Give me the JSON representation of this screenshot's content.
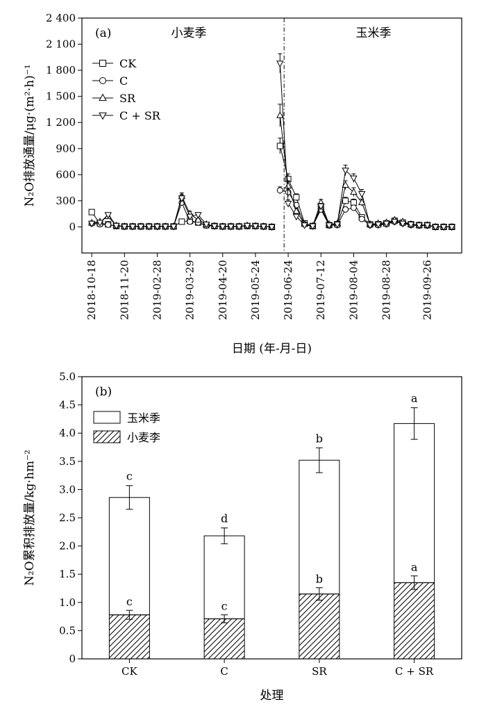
{
  "chart_data": [
    {
      "panel": "(a)",
      "type": "line",
      "ylabel": "N₂O排放通量/μg·(m²·h)⁻¹",
      "xlabel": "日期 (年-月-日)",
      "ylim": [
        -300,
        2400
      ],
      "yticks": [
        0,
        300,
        600,
        900,
        1200,
        1500,
        1800,
        2100,
        2400
      ],
      "ytick_labels": [
        "0",
        "300",
        "600",
        "900",
        "1 200",
        "1 500",
        "1 800",
        "2 100",
        "2 400"
      ],
      "xtick_labels": [
        "2018-10-18",
        "2018-11-20",
        "2019-02-28",
        "2019-03-29",
        "2019-04-20",
        "2019-05-24",
        "2019-06-24",
        "2019-07-12",
        "2019-08-04",
        "2019-08-28",
        "2019-09-26"
      ],
      "season_labels": [
        "小麦季",
        "玉米季"
      ],
      "legend_position": "top-left",
      "x": [
        0,
        0.5,
        1,
        1.5,
        2,
        2.5,
        3,
        3.5,
        4,
        4.5,
        5,
        5.5,
        6,
        6.5,
        7,
        7.5,
        8,
        8.5,
        9,
        9.5,
        10,
        10.5,
        11,
        11.5,
        12,
        12.5,
        13,
        13.5,
        14,
        14.5,
        15,
        15.5,
        16,
        16.5,
        17,
        17.5,
        18,
        18.5,
        19,
        19.5,
        20,
        20.5,
        21,
        21.5,
        22
      ],
      "series": [
        {
          "name": "CK",
          "marker": "square",
          "y": [
            170,
            40,
            30,
            10,
            5,
            5,
            5,
            5,
            5,
            5,
            5,
            60,
            70,
            50,
            20,
            10,
            5,
            5,
            5,
            10,
            10,
            5,
            0,
            930,
            550,
            340,
            40,
            10,
            210,
            20,
            30,
            300,
            280,
            110,
            30,
            30,
            40,
            70,
            50,
            30,
            20,
            20,
            0,
            0,
            0
          ],
          "err": [
            15,
            10,
            5,
            5,
            5,
            5,
            5,
            5,
            5,
            5,
            5,
            15,
            15,
            10,
            5,
            5,
            5,
            5,
            5,
            5,
            5,
            5,
            5,
            90,
            60,
            40,
            10,
            5,
            30,
            10,
            10,
            40,
            40,
            20,
            10,
            10,
            10,
            15,
            10,
            10,
            5,
            5,
            5,
            5,
            5
          ]
        },
        {
          "name": "C",
          "marker": "circle",
          "y": [
            40,
            30,
            25,
            10,
            5,
            5,
            5,
            5,
            5,
            5,
            5,
            280,
            60,
            50,
            15,
            10,
            5,
            5,
            5,
            10,
            10,
            5,
            0,
            420,
            400,
            250,
            30,
            10,
            200,
            20,
            20,
            200,
            220,
            90,
            20,
            20,
            30,
            60,
            40,
            20,
            15,
            15,
            0,
            0,
            0
          ],
          "err": [
            10,
            8,
            5,
            5,
            5,
            5,
            5,
            5,
            5,
            5,
            5,
            30,
            15,
            10,
            5,
            5,
            5,
            5,
            5,
            5,
            5,
            5,
            5,
            40,
            50,
            30,
            10,
            5,
            30,
            10,
            10,
            30,
            30,
            20,
            10,
            10,
            10,
            15,
            10,
            10,
            5,
            5,
            5,
            5,
            5
          ]
        },
        {
          "name": "SR",
          "marker": "triangle-up",
          "y": [
            45,
            60,
            120,
            15,
            5,
            5,
            5,
            5,
            5,
            5,
            5,
            350,
            150,
            80,
            30,
            10,
            5,
            5,
            5,
            15,
            10,
            5,
            0,
            1280,
            470,
            180,
            30,
            10,
            280,
            30,
            40,
            480,
            400,
            280,
            30,
            40,
            50,
            80,
            60,
            30,
            20,
            20,
            0,
            0,
            0
          ],
          "err": [
            10,
            10,
            20,
            5,
            5,
            5,
            5,
            5,
            5,
            5,
            5,
            40,
            30,
            15,
            10,
            5,
            5,
            5,
            5,
            5,
            5,
            5,
            5,
            130,
            60,
            30,
            10,
            5,
            35,
            10,
            10,
            50,
            50,
            40,
            10,
            10,
            10,
            15,
            10,
            10,
            5,
            5,
            5,
            5,
            5
          ]
        },
        {
          "name": "C + SR",
          "marker": "triangle-down",
          "y": [
            40,
            50,
            140,
            15,
            5,
            5,
            5,
            5,
            5,
            5,
            5,
            330,
            120,
            140,
            30,
            10,
            5,
            5,
            5,
            15,
            10,
            5,
            0,
            1880,
            270,
            120,
            20,
            10,
            240,
            20,
            30,
            650,
            560,
            380,
            20,
            30,
            40,
            60,
            40,
            30,
            20,
            20,
            0,
            0,
            0
          ],
          "err": [
            10,
            10,
            20,
            5,
            5,
            5,
            5,
            5,
            5,
            5,
            5,
            40,
            25,
            25,
            10,
            5,
            5,
            5,
            5,
            5,
            5,
            5,
            5,
            110,
            40,
            25,
            10,
            5,
            30,
            10,
            10,
            60,
            50,
            50,
            10,
            10,
            10,
            15,
            10,
            10,
            5,
            5,
            5,
            5,
            5
          ]
        }
      ]
    },
    {
      "panel": "(b)",
      "type": "bar",
      "stacked": true,
      "ylabel": "N₂O累积排放量/kg·hm⁻²",
      "xlabel": "处理",
      "ylim": [
        0,
        5.0
      ],
      "yticks": [
        0,
        0.5,
        1.0,
        1.5,
        2.0,
        2.5,
        3.0,
        3.5,
        4.0,
        4.5,
        5.0
      ],
      "ytick_labels": [
        "0",
        "0.5",
        "1.0",
        "1.5",
        "2.0",
        "2.5",
        "3.0",
        "3.5",
        "4.0",
        "4.5",
        "5.0"
      ],
      "categories": [
        "CK",
        "C",
        "SR",
        "C + SR"
      ],
      "legend_position": "top-left",
      "series": [
        {
          "name": "小麦李",
          "pattern": "hatched",
          "values": [
            0.78,
            0.71,
            1.15,
            1.35
          ],
          "err": [
            0.08,
            0.07,
            0.11,
            0.12
          ],
          "letters": [
            "c",
            "c",
            "b",
            "a"
          ]
        },
        {
          "name": "玉米季",
          "pattern": "empty",
          "values": [
            2.08,
            1.47,
            2.37,
            2.82
          ],
          "total_err": [
            0.21,
            0.14,
            0.22,
            0.28
          ],
          "letters": [
            "c",
            "d",
            "b",
            "a"
          ]
        }
      ]
    }
  ]
}
